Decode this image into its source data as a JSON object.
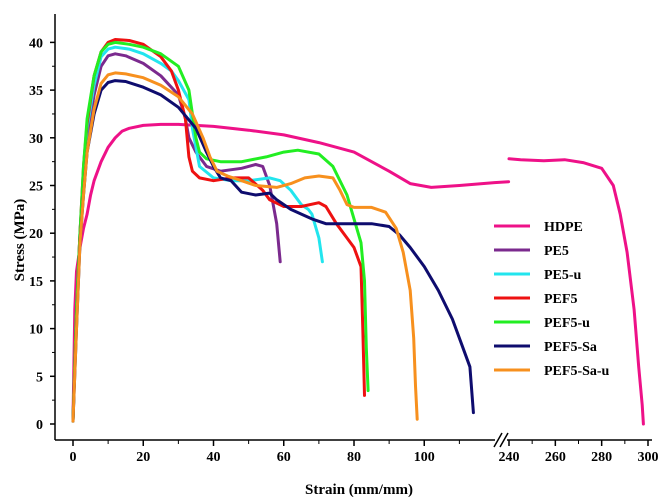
{
  "chart_data": {
    "type": "line",
    "xlabel": "Strain (mm/mm)",
    "ylabel": "Stress (MPa)",
    "ylim": [
      0,
      42
    ],
    "x_axis_segments": [
      {
        "range": [
          0,
          130
        ],
        "ticks": [
          0,
          20,
          40,
          60,
          80,
          100
        ]
      },
      {
        "range": [
          235,
          300
        ],
        "ticks": [
          240,
          260,
          280,
          300
        ]
      }
    ],
    "y_ticks": [
      0,
      5,
      10,
      15,
      20,
      25,
      30,
      35,
      40
    ],
    "x_tick_labels": [
      "0",
      "20",
      "40",
      "60",
      "80",
      "100",
      "240",
      "260",
      "280",
      "300"
    ],
    "y_tick_labels": [
      "0",
      "5",
      "10",
      "15",
      "20",
      "25",
      "30",
      "35",
      "40"
    ],
    "axis_break": true,
    "legend_position": "right",
    "series": [
      {
        "name": "HDPE",
        "color": "#ee1188",
        "segments": [
          [
            [
              0,
              0.5
            ],
            [
              0.5,
              12
            ],
            [
              1,
              16
            ],
            [
              2,
              18.5
            ],
            [
              3,
              20.5
            ],
            [
              4,
              22
            ],
            [
              5,
              24
            ],
            [
              6,
              25.5
            ],
            [
              8,
              27.5
            ],
            [
              10,
              29
            ],
            [
              12,
              30
            ],
            [
              14,
              30.7
            ],
            [
              16,
              31
            ],
            [
              20,
              31.3
            ],
            [
              25,
              31.4
            ],
            [
              30,
              31.4
            ],
            [
              40,
              31.2
            ],
            [
              50,
              30.8
            ],
            [
              60,
              30.3
            ],
            [
              70,
              29.5
            ],
            [
              80,
              28.5
            ],
            [
              90,
              26.5
            ],
            [
              96,
              25.2
            ],
            [
              102,
              24.8
            ],
            [
              110,
              25
            ],
            [
              120,
              25.3
            ],
            [
              124,
              25.4
            ]
          ],
          [
            [
              240,
              27.8
            ],
            [
              245,
              27.7
            ],
            [
              255,
              27.6
            ],
            [
              264,
              27.7
            ],
            [
              272,
              27.4
            ],
            [
              280,
              26.8
            ],
            [
              285,
              25
            ],
            [
              288,
              22
            ],
            [
              291,
              18
            ],
            [
              294,
              12
            ],
            [
              296,
              6
            ],
            [
              297.5,
              2
            ],
            [
              298,
              0
            ]
          ]
        ]
      },
      {
        "name": "PE5",
        "color": "#7b2a8e",
        "segments": [
          [
            [
              0,
              0.5
            ],
            [
              1,
              12
            ],
            [
              2,
              20
            ],
            [
              3,
              26
            ],
            [
              4,
              30
            ],
            [
              6,
              34.5
            ],
            [
              8,
              37.5
            ],
            [
              10,
              38.6
            ],
            [
              12,
              38.8
            ],
            [
              15,
              38.6
            ],
            [
              20,
              37.8
            ],
            [
              25,
              36.5
            ],
            [
              30,
              34.5
            ],
            [
              32,
              32
            ],
            [
              33,
              30
            ],
            [
              35,
              28.5
            ],
            [
              38,
              27
            ],
            [
              42,
              26.5
            ],
            [
              48,
              26.8
            ],
            [
              52,
              27.2
            ],
            [
              54,
              27
            ],
            [
              56,
              25
            ],
            [
              58,
              21
            ],
            [
              59,
              17
            ]
          ]
        ]
      },
      {
        "name": "PE5-u",
        "color": "#22e5ee",
        "segments": [
          [
            [
              0,
              0.3
            ],
            [
              1,
              12
            ],
            [
              2,
              20
            ],
            [
              3,
              26
            ],
            [
              4,
              31
            ],
            [
              6,
              35.5
            ],
            [
              8,
              38.5
            ],
            [
              10,
              39.3
            ],
            [
              12,
              39.5
            ],
            [
              16,
              39.3
            ],
            [
              20,
              38.8
            ],
            [
              25,
              37.8
            ],
            [
              28,
              37
            ],
            [
              30,
              36
            ],
            [
              33,
              34
            ],
            [
              34,
              31
            ],
            [
              36,
              27
            ],
            [
              40,
              25.8
            ],
            [
              45,
              25.5
            ],
            [
              50,
              25.5
            ],
            [
              56,
              25.8
            ],
            [
              59,
              25.5
            ],
            [
              62,
              24.5
            ],
            [
              65,
              23
            ],
            [
              67,
              22.5
            ],
            [
              68,
              22
            ],
            [
              70,
              19.5
            ],
            [
              71,
              17
            ]
          ]
        ]
      },
      {
        "name": "PEF5",
        "color": "#ee1111",
        "segments": [
          [
            [
              0,
              0.3
            ],
            [
              1,
              12
            ],
            [
              2,
              20
            ],
            [
              3,
              27
            ],
            [
              4,
              31.5
            ],
            [
              6,
              36.5
            ],
            [
              8,
              39
            ],
            [
              10,
              40
            ],
            [
              12,
              40.3
            ],
            [
              16,
              40.2
            ],
            [
              20,
              39.8
            ],
            [
              25,
              38.5
            ],
            [
              28,
              37
            ],
            [
              30,
              35
            ],
            [
              32,
              32
            ],
            [
              33,
              28
            ],
            [
              34,
              26.5
            ],
            [
              36,
              25.8
            ],
            [
              40,
              25.5
            ],
            [
              45,
              25.8
            ],
            [
              50,
              25.8
            ],
            [
              54,
              24.5
            ],
            [
              56,
              23.5
            ],
            [
              60,
              22.8
            ],
            [
              65,
              22.8
            ],
            [
              70,
              23.2
            ],
            [
              72,
              22.8
            ],
            [
              75,
              21
            ],
            [
              78,
              19.5
            ],
            [
              80,
              18.5
            ],
            [
              82,
              16.5
            ],
            [
              82.5,
              10
            ],
            [
              83,
              3
            ]
          ]
        ]
      },
      {
        "name": "PEF5-u",
        "color": "#22ee22",
        "segments": [
          [
            [
              0,
              0.3
            ],
            [
              1,
              12
            ],
            [
              2,
              20
            ],
            [
              3,
              27
            ],
            [
              4,
              32
            ],
            [
              6,
              36.5
            ],
            [
              8,
              39
            ],
            [
              10,
              39.8
            ],
            [
              12,
              40
            ],
            [
              16,
              39.8
            ],
            [
              20,
              39.5
            ],
            [
              25,
              38.8
            ],
            [
              30,
              37.5
            ],
            [
              33,
              35
            ],
            [
              35,
              30
            ],
            [
              36,
              28.5
            ],
            [
              38,
              27.8
            ],
            [
              42,
              27.5
            ],
            [
              48,
              27.5
            ],
            [
              55,
              28
            ],
            [
              60,
              28.5
            ],
            [
              64,
              28.7
            ],
            [
              70,
              28.3
            ],
            [
              74,
              27
            ],
            [
              78,
              24
            ],
            [
              80,
              21.5
            ],
            [
              82,
              19
            ],
            [
              83,
              15
            ],
            [
              83.5,
              8
            ],
            [
              84,
              3.5
            ]
          ]
        ]
      },
      {
        "name": "PEF5-Sa",
        "color": "#0e0c6e",
        "segments": [
          [
            [
              0,
              0.3
            ],
            [
              1,
              10
            ],
            [
              2,
              19
            ],
            [
              3,
              24
            ],
            [
              4,
              28.5
            ],
            [
              6,
              32.5
            ],
            [
              8,
              35
            ],
            [
              10,
              35.8
            ],
            [
              12,
              36
            ],
            [
              15,
              35.9
            ],
            [
              20,
              35.3
            ],
            [
              25,
              34.5
            ],
            [
              30,
              33.2
            ],
            [
              35,
              31
            ],
            [
              38,
              28.5
            ],
            [
              40,
              27
            ],
            [
              42,
              25.8
            ],
            [
              45,
              25.5
            ],
            [
              48,
              24.3
            ],
            [
              52,
              24
            ],
            [
              56,
              24.2
            ],
            [
              58,
              23.5
            ],
            [
              62,
              22.5
            ],
            [
              65,
              22
            ],
            [
              68,
              21.5
            ],
            [
              72,
              21
            ],
            [
              78,
              21
            ],
            [
              85,
              21
            ],
            [
              90,
              20.7
            ],
            [
              93,
              19.8
            ],
            [
              96,
              18.5
            ],
            [
              100,
              16.5
            ],
            [
              104,
              14
            ],
            [
              108,
              11
            ],
            [
              111,
              8
            ],
            [
              113,
              6
            ],
            [
              114,
              1.2
            ]
          ]
        ]
      },
      {
        "name": "PEF5-Sa-u",
        "color": "#f7901e",
        "segments": [
          [
            [
              0,
              0.3
            ],
            [
              1,
              10
            ],
            [
              2,
              19
            ],
            [
              3,
              24
            ],
            [
              4,
              28.5
            ],
            [
              6,
              33
            ],
            [
              8,
              35.7
            ],
            [
              10,
              36.6
            ],
            [
              12,
              36.8
            ],
            [
              15,
              36.7
            ],
            [
              20,
              36.3
            ],
            [
              25,
              35.5
            ],
            [
              30,
              34.3
            ],
            [
              34,
              32.5
            ],
            [
              37,
              30
            ],
            [
              39,
              28
            ],
            [
              41,
              26.5
            ],
            [
              44,
              26
            ],
            [
              48,
              25.5
            ],
            [
              52,
              25
            ],
            [
              58,
              24.8
            ],
            [
              62,
              25.2
            ],
            [
              66,
              25.8
            ],
            [
              70,
              26
            ],
            [
              74,
              25.8
            ],
            [
              76,
              24.5
            ],
            [
              78,
              23
            ],
            [
              80,
              22.7
            ],
            [
              85,
              22.7
            ],
            [
              89,
              22.2
            ],
            [
              92,
              20.5
            ],
            [
              94,
              18
            ],
            [
              96,
              14
            ],
            [
              97,
              9
            ],
            [
              97.5,
              4
            ],
            [
              98,
              0.5
            ]
          ]
        ]
      }
    ]
  }
}
